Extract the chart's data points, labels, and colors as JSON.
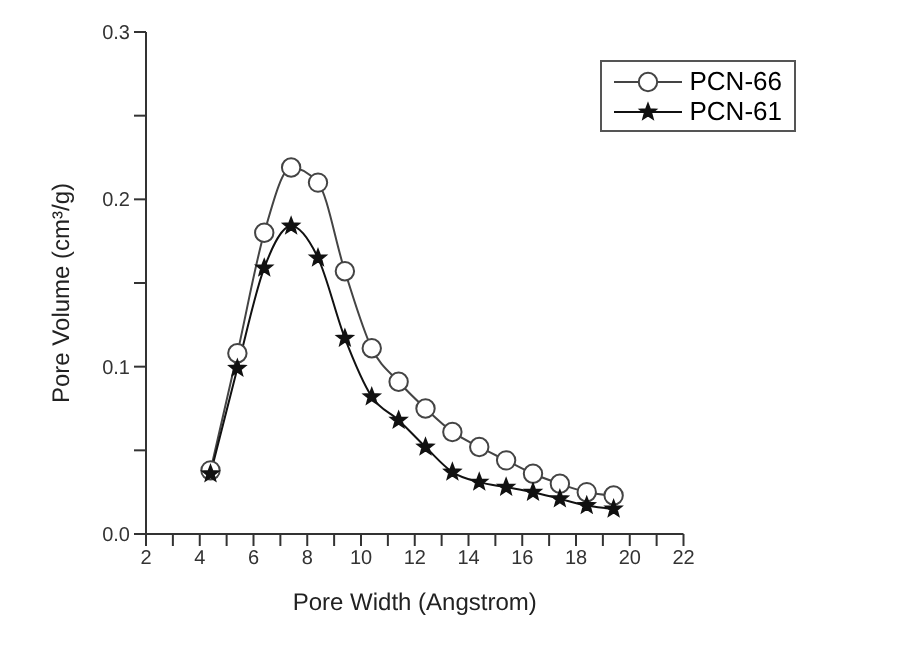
{
  "chart_data": {
    "type": "line",
    "xlabel": "Pore Width (Angstrom)",
    "ylabel": "Pore Volume (cm³/g)",
    "x": [
      4.4,
      5.4,
      6.4,
      7.4,
      8.4,
      9.4,
      10.4,
      11.4,
      12.4,
      13.4,
      14.4,
      15.4,
      16.4,
      17.4,
      18.4,
      19.4
    ],
    "series": [
      {
        "name": "PCN-66",
        "color": "#444444",
        "marker": "circle",
        "values": [
          0.038,
          0.108,
          0.18,
          0.219,
          0.21,
          0.157,
          0.111,
          0.091,
          0.075,
          0.061,
          0.052,
          0.044,
          0.036,
          0.03,
          0.025,
          0.023
        ]
      },
      {
        "name": "PCN-61",
        "color": "#111111",
        "marker": "star",
        "values": [
          0.036,
          0.099,
          0.159,
          0.184,
          0.165,
          0.117,
          0.082,
          0.068,
          0.052,
          0.037,
          0.031,
          0.028,
          0.025,
          0.021,
          0.017,
          0.015
        ]
      }
    ],
    "xlim": [
      2,
      22
    ],
    "xticks": [
      2,
      {
        "value": 3,
        "label": null
      },
      4,
      {
        "value": 5,
        "label": null
      },
      6,
      {
        "value": 7,
        "label": null
      },
      8,
      {
        "value": 9,
        "label": null
      },
      10,
      {
        "value": 11,
        "label": null
      },
      12,
      {
        "value": 13,
        "label": null
      },
      14,
      {
        "value": 15,
        "label": null
      },
      16,
      {
        "value": 17,
        "label": null
      },
      18,
      {
        "value": 19,
        "label": null
      },
      20,
      {
        "value": 21,
        "label": null
      },
      22
    ],
    "ylim": [
      0,
      0.3
    ],
    "yticks": [
      {
        "value": 0,
        "label": "0.0"
      },
      {
        "value": 0.05,
        "label": null
      },
      0.1,
      {
        "value": 0.15,
        "label": null
      },
      0.2,
      {
        "value": 0.25,
        "label": null
      },
      0.3
    ],
    "grid": false,
    "legend": "top right",
    "line_style": "solid"
  }
}
